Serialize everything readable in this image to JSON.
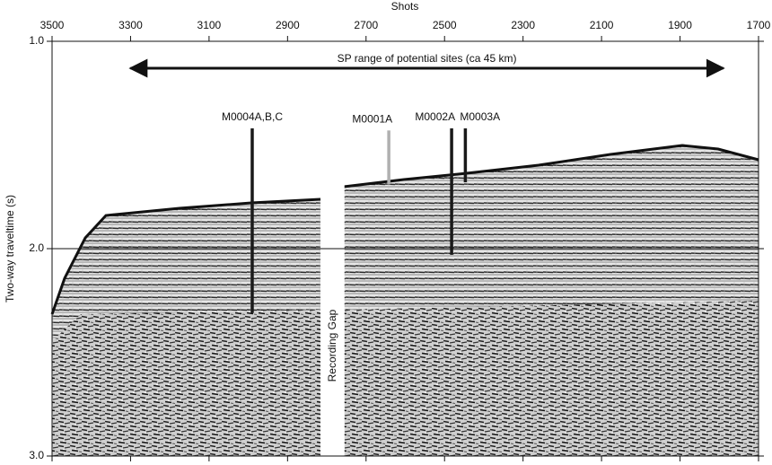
{
  "chart_data": {
    "type": "seismic-section",
    "xlabel": "Shots",
    "ylabel": "Two-way traveltime (s)",
    "xlim": [
      3500,
      1700
    ],
    "xticks": [
      3500,
      3300,
      3100,
      2900,
      2700,
      2500,
      2300,
      2100,
      1900,
      1700
    ],
    "ylim": [
      1.0,
      3.0
    ],
    "y_reversed": true,
    "yticks": [
      {
        "value": 1.0,
        "label": "1.0"
      },
      {
        "value": 2.0,
        "label": "2.0"
      },
      {
        "value": 3.0,
        "label": "3.0"
      }
    ],
    "grid": true,
    "range_arrow": {
      "label": "SP range of potential sites (ca 45 km)",
      "x": [
        3300,
        1790
      ],
      "y": 1.13
    },
    "recording_gap": {
      "label": "Recording Gap",
      "x": [
        2815,
        2755
      ]
    },
    "sites": [
      {
        "label": "M0004A,B,C",
        "x": 2990,
        "y": [
          1.42,
          2.31
        ],
        "color": "#1a1a1a"
      },
      {
        "label": "M0001A",
        "x": 2642,
        "y": [
          1.43,
          1.69
        ],
        "color": "#b0b0b0"
      },
      {
        "label": "M0002A",
        "x": 2482,
        "y": [
          1.42,
          2.03
        ],
        "color": "#1a1a1a"
      },
      {
        "label": "M0003A",
        "x": 2447,
        "y": [
          1.42,
          1.68
        ],
        "color": "#1a1a1a"
      }
    ]
  }
}
